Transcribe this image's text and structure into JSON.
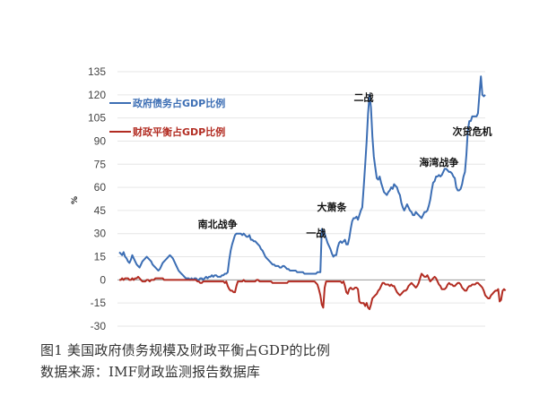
{
  "chart_data": {
    "type": "line",
    "title": "",
    "xlabel": "",
    "ylabel": "%",
    "ylim": [
      -30,
      135
    ],
    "yticks": [
      135,
      120,
      105,
      90,
      75,
      60,
      45,
      30,
      15,
      0,
      -15,
      -30
    ],
    "grid": true,
    "legend_position": "top-left",
    "series": [
      {
        "name": "政府债务占GDP比例",
        "color": "#3c6eb4",
        "values": [
          18,
          17,
          16,
          18,
          15,
          14,
          12,
          11,
          13,
          16,
          14,
          12,
          10,
          9,
          8,
          10,
          12,
          13,
          14,
          15,
          14,
          13,
          12,
          10,
          9,
          8,
          7,
          6,
          7,
          9,
          11,
          12,
          13,
          14,
          15,
          16,
          15,
          14,
          12,
          10,
          8,
          6,
          5,
          4,
          3,
          2,
          1,
          1,
          1,
          0,
          1,
          0,
          1,
          1,
          0,
          0,
          1,
          1,
          0,
          1,
          2,
          1,
          2,
          2,
          3,
          2,
          3,
          3,
          2,
          2,
          2,
          3,
          3,
          4,
          4,
          5,
          13,
          19,
          23,
          26,
          29,
          30,
          30,
          30,
          30,
          29,
          30,
          29,
          28,
          28,
          29,
          26,
          26,
          25,
          25,
          24,
          23,
          22,
          20,
          19,
          17,
          15,
          14,
          13,
          12,
          11,
          10,
          10,
          9,
          9,
          9,
          8,
          8,
          9,
          9,
          8,
          7,
          7,
          6,
          6,
          6,
          6,
          6,
          5,
          5,
          5,
          5,
          5,
          4,
          4,
          4,
          4,
          4,
          4,
          4,
          4,
          4,
          5,
          5,
          5,
          33,
          32,
          30,
          27,
          24,
          22,
          20,
          17,
          15,
          16,
          16,
          21,
          24,
          25,
          24,
          25,
          26,
          23,
          23,
          27,
          33,
          38,
          40,
          40,
          41,
          39,
          42,
          45,
          47,
          60,
          75,
          90,
          108,
          120,
          112,
          93,
          80,
          73,
          66,
          65,
          67,
          63,
          60,
          57,
          56,
          55,
          57,
          58,
          60,
          59,
          62,
          61,
          60,
          57,
          55,
          50,
          47,
          45,
          47,
          49,
          47,
          45,
          44,
          42,
          42,
          44,
          43,
          42,
          41,
          40,
          42,
          44,
          44,
          45,
          48,
          52,
          58,
          63,
          64,
          67,
          67,
          68,
          67,
          68,
          70,
          72,
          72,
          71,
          70,
          70,
          69,
          67,
          66,
          60,
          58,
          58,
          59,
          62,
          67,
          70,
          81,
          97,
          103,
          103,
          106,
          106,
          106,
          106,
          108,
          120,
          132,
          120,
          119,
          120
        ]
      },
      {
        "name": "财政平衡占GDP比例",
        "color": "#b22c22",
        "values": [
          0,
          0,
          1,
          0,
          1,
          1,
          1,
          0,
          0,
          1,
          0,
          1,
          1,
          2,
          1,
          0,
          -1,
          -1,
          -1,
          0,
          0,
          -1,
          0,
          0,
          0,
          1,
          1,
          1,
          1,
          1,
          1,
          0,
          0,
          0,
          0,
          0,
          0,
          0,
          0,
          0,
          0,
          0,
          0,
          0,
          0,
          0,
          0,
          0,
          0,
          0,
          0,
          0,
          0,
          0,
          -1,
          -1,
          -2,
          -2,
          -1,
          -1,
          -1,
          -1,
          -1,
          -1,
          -1,
          -1,
          -1,
          -1,
          -1,
          -1,
          -1,
          -1,
          -1,
          -2,
          -1,
          -4,
          -6,
          -7,
          -7,
          -8,
          -8,
          -4,
          -1,
          -1,
          -1,
          -1,
          0,
          -1,
          -1,
          -1,
          -1,
          -1,
          -1,
          -1,
          -1,
          0,
          0,
          -1,
          -1,
          -1,
          -1,
          -1,
          -1,
          -1,
          -1,
          -1,
          -2,
          -2,
          -2,
          -2,
          -2,
          -2,
          -2,
          -2,
          -2,
          -2,
          -2,
          -1,
          -1,
          -1,
          -1,
          -1,
          -1,
          -1,
          -1,
          -1,
          -1,
          -1,
          -1,
          -1,
          -1,
          -1,
          -1,
          -1,
          -1,
          -1,
          -2,
          -3,
          -6,
          -10,
          -16,
          -18,
          -5,
          -1,
          -1,
          -1,
          -1,
          -1,
          -1,
          -1,
          -1,
          -1,
          -1,
          -1,
          -2,
          -1,
          -4,
          -8,
          -9,
          -6,
          -5,
          -6,
          -6,
          -5,
          -5,
          -6,
          -14,
          -15,
          -15,
          -15,
          -17,
          -15,
          -18,
          -19,
          -16,
          -12,
          -11,
          -10,
          -9,
          -7,
          -6,
          -4,
          -2,
          -2,
          -3,
          -3,
          -3,
          -4,
          -3,
          -4,
          -4,
          -6,
          -8,
          -9,
          -10,
          -9,
          -8,
          -7,
          -7,
          -6,
          -4,
          -3,
          -2,
          -3,
          -4,
          -5,
          -4,
          -2,
          1,
          4,
          3,
          2,
          2,
          3,
          1,
          -1,
          0,
          1,
          2,
          1,
          -1,
          -3,
          -4,
          -6,
          -6,
          -6,
          -5,
          -3,
          -2,
          -3,
          -3,
          -4,
          -4,
          -3,
          -2,
          -2,
          -3,
          -5,
          -6,
          -7,
          -7,
          -5,
          -4,
          -4,
          -3,
          -3,
          -3,
          -2,
          -2,
          -3,
          -4,
          -5,
          -7,
          -10,
          -11,
          -12,
          -12,
          -10,
          -9,
          -8,
          -7,
          -7,
          -6,
          -14,
          -13,
          -7,
          -6,
          -7
        ]
      }
    ],
    "annotations": [
      {
        "text": "南北战争",
        "x": 68,
        "y": 34
      },
      {
        "text": "一战",
        "x": 136,
        "y": 28
      },
      {
        "text": "大萧条",
        "x": 147,
        "y": 45
      },
      {
        "text": "二战",
        "x": 169,
        "y": 116
      },
      {
        "text": "海湾战争",
        "x": 221,
        "y": 74
      },
      {
        "text": "次贷危机",
        "x": 244,
        "y": 94
      }
    ]
  },
  "captions": {
    "figure": "图1   美国政府债务规模及财政平衡占GDP的比例",
    "source": "数据来源：IMF财政监测报告数据库"
  }
}
